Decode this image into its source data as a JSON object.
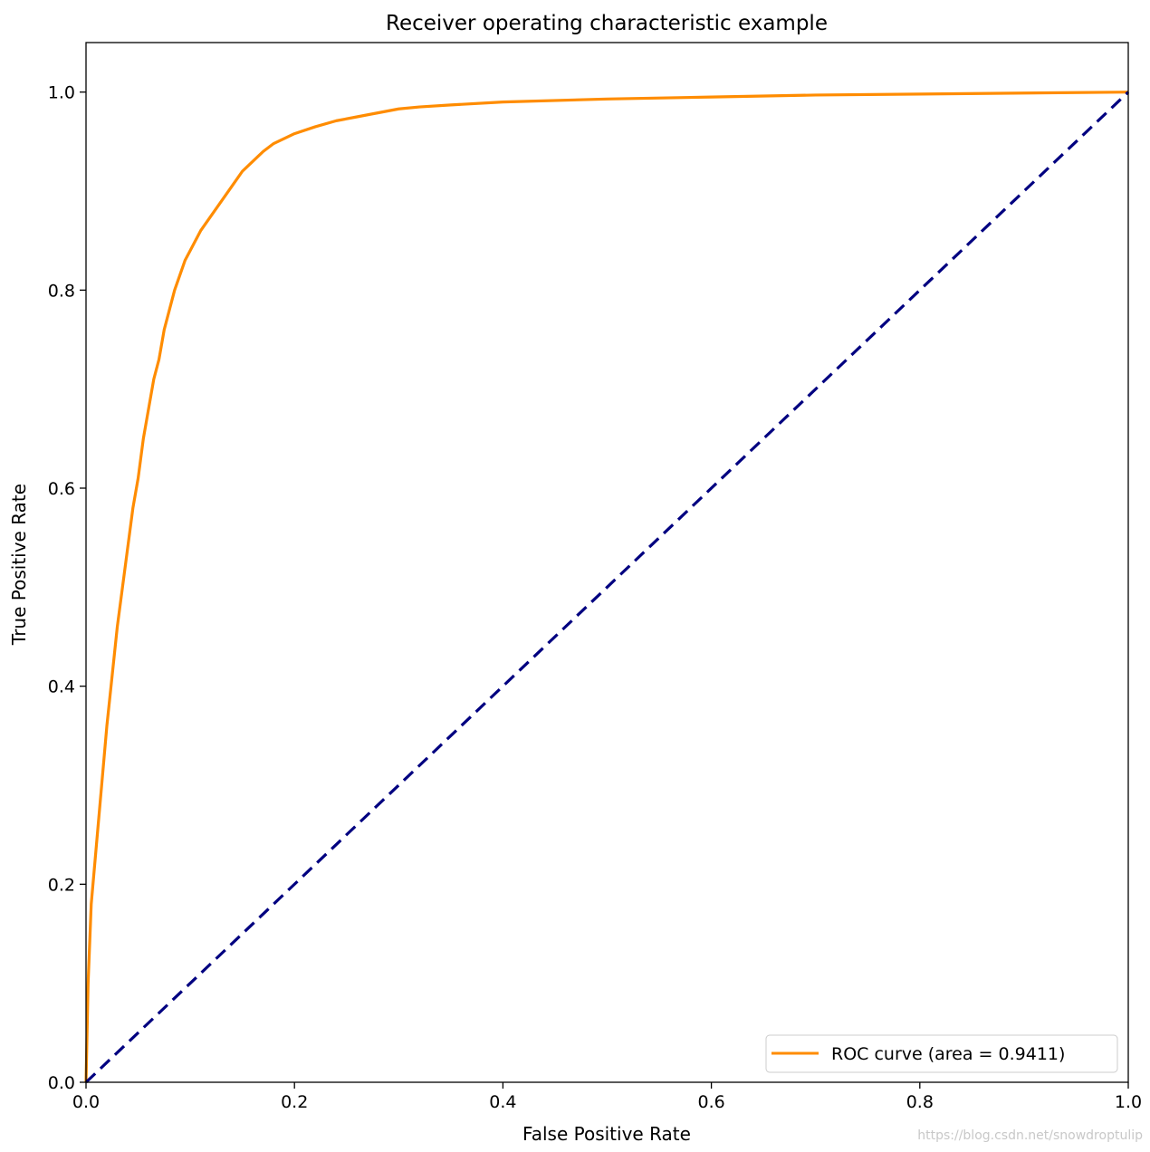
{
  "chart_data": {
    "type": "line",
    "title": "Receiver operating characteristic example",
    "xlabel": "False Positive Rate",
    "ylabel": "True Positive Rate",
    "xlim": [
      0.0,
      1.0
    ],
    "ylim": [
      0.0,
      1.05
    ],
    "xticks": [
      "0.0",
      "0.2",
      "0.4",
      "0.6",
      "0.8",
      "1.0"
    ],
    "yticks": [
      "0.0",
      "0.2",
      "0.4",
      "0.6",
      "0.8",
      "1.0"
    ],
    "grid": false,
    "legend_position": "lower-right",
    "series": [
      {
        "name": "ROC curve (area = 0.9411)",
        "color": "#ff8c00",
        "style": "solid",
        "points": [
          [
            0.0,
            0.0
          ],
          [
            0.002,
            0.1
          ],
          [
            0.005,
            0.18
          ],
          [
            0.01,
            0.24
          ],
          [
            0.015,
            0.3
          ],
          [
            0.02,
            0.36
          ],
          [
            0.025,
            0.41
          ],
          [
            0.03,
            0.46
          ],
          [
            0.035,
            0.5
          ],
          [
            0.04,
            0.54
          ],
          [
            0.045,
            0.58
          ],
          [
            0.05,
            0.61
          ],
          [
            0.055,
            0.65
          ],
          [
            0.06,
            0.68
          ],
          [
            0.065,
            0.71
          ],
          [
            0.07,
            0.73
          ],
          [
            0.075,
            0.76
          ],
          [
            0.08,
            0.78
          ],
          [
            0.085,
            0.8
          ],
          [
            0.09,
            0.815
          ],
          [
            0.095,
            0.83
          ],
          [
            0.1,
            0.84
          ],
          [
            0.11,
            0.86
          ],
          [
            0.12,
            0.875
          ],
          [
            0.13,
            0.89
          ],
          [
            0.14,
            0.905
          ],
          [
            0.15,
            0.92
          ],
          [
            0.16,
            0.93
          ],
          [
            0.17,
            0.94
          ],
          [
            0.18,
            0.948
          ],
          [
            0.19,
            0.953
          ],
          [
            0.2,
            0.958
          ],
          [
            0.22,
            0.965
          ],
          [
            0.24,
            0.971
          ],
          [
            0.26,
            0.975
          ],
          [
            0.28,
            0.979
          ],
          [
            0.3,
            0.983
          ],
          [
            0.32,
            0.985
          ],
          [
            0.35,
            0.987
          ],
          [
            0.4,
            0.99
          ],
          [
            0.5,
            0.993
          ],
          [
            0.6,
            0.995
          ],
          [
            0.7,
            0.997
          ],
          [
            0.8,
            0.998
          ],
          [
            0.9,
            0.999
          ],
          [
            1.0,
            1.0
          ]
        ]
      },
      {
        "name": "",
        "color": "#000080",
        "style": "dashed",
        "points": [
          [
            0.0,
            0.0
          ],
          [
            1.0,
            1.0
          ]
        ]
      }
    ]
  },
  "watermark": "https://blog.csdn.net/snowdroptulip"
}
